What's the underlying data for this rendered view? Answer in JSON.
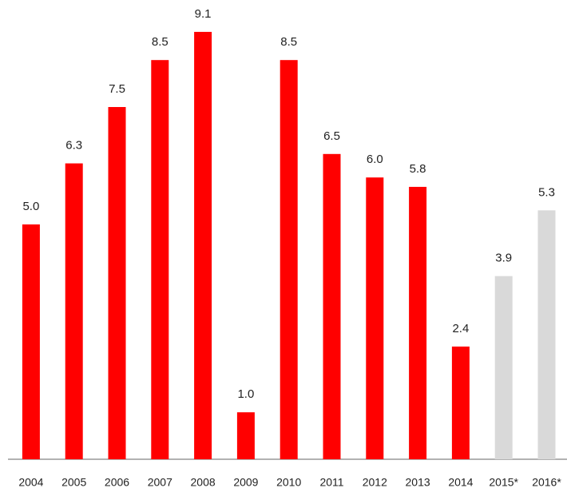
{
  "chart_data": {
    "type": "bar",
    "categories": [
      "2004",
      "2005",
      "2006",
      "2007",
      "2008",
      "2009",
      "2010",
      "2011",
      "2012",
      "2013",
      "2014",
      "2015*",
      "2016*"
    ],
    "values": [
      5.0,
      6.3,
      7.5,
      8.5,
      9.1,
      1.0,
      8.5,
      6.5,
      6.0,
      5.8,
      2.4,
      3.9,
      5.3
    ],
    "value_labels": [
      "5.0",
      "6.3",
      "7.5",
      "8.5",
      "9.1",
      "1.0",
      "8.5",
      "6.5",
      "6.0",
      "5.8",
      "2.4",
      "3.9",
      "5.3"
    ],
    "colors": [
      "#ff0000",
      "#ff0000",
      "#ff0000",
      "#ff0000",
      "#ff0000",
      "#ff0000",
      "#ff0000",
      "#ff0000",
      "#ff0000",
      "#ff0000",
      "#ff0000",
      "#d9d9d9",
      "#d9d9d9"
    ],
    "ylim": [
      0,
      10
    ]
  }
}
